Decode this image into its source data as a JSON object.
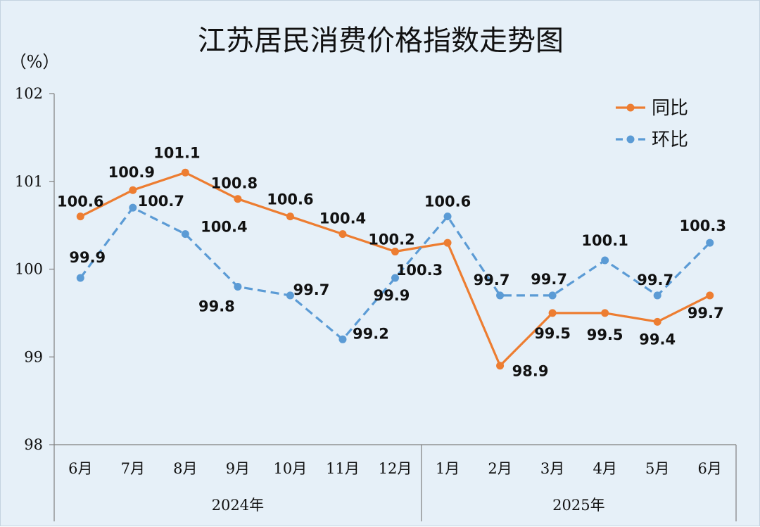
{
  "chart_data": {
    "type": "line",
    "title": "江苏居民消费价格指数走势图",
    "unit": "（%）",
    "ylim": [
      98,
      102
    ],
    "yticks": [
      98,
      99,
      100,
      101,
      102
    ],
    "categories": [
      "6月",
      "7月",
      "8月",
      "9月",
      "10月",
      "11月",
      "12月",
      "1月",
      "2月",
      "3月",
      "4月",
      "5月",
      "6月"
    ],
    "groups": [
      {
        "label": "2024年",
        "start": 0,
        "end": 6
      },
      {
        "label": "2025年",
        "start": 7,
        "end": 12
      }
    ],
    "series": [
      {
        "name": "同比",
        "color": "#ed7d31",
        "style": "solid",
        "values": [
          100.6,
          100.9,
          101.1,
          100.8,
          100.6,
          100.4,
          100.2,
          100.3,
          98.9,
          99.5,
          99.5,
          99.4,
          99.7
        ],
        "labels": [
          "100.6",
          "100.9",
          "101.1",
          "100.8",
          "100.6",
          "100.4",
          "100.2",
          "100.3",
          "98.9",
          "99.5",
          "99.5",
          "99.4",
          "99.7"
        ]
      },
      {
        "name": "环比",
        "color": "#5b9bd5",
        "style": "dashed",
        "values": [
          99.9,
          100.7,
          100.4,
          99.8,
          99.7,
          99.2,
          99.9,
          100.6,
          99.7,
          99.7,
          100.1,
          99.7,
          100.3
        ],
        "labels": [
          "99.9",
          "100.7",
          "100.4",
          "99.8",
          "99.7",
          "99.2",
          "99.9",
          "100.6",
          "99.7",
          "99.7",
          "100.1",
          "99.7",
          "100.3"
        ]
      }
    ],
    "legend_position": "top-right",
    "grid": false
  }
}
